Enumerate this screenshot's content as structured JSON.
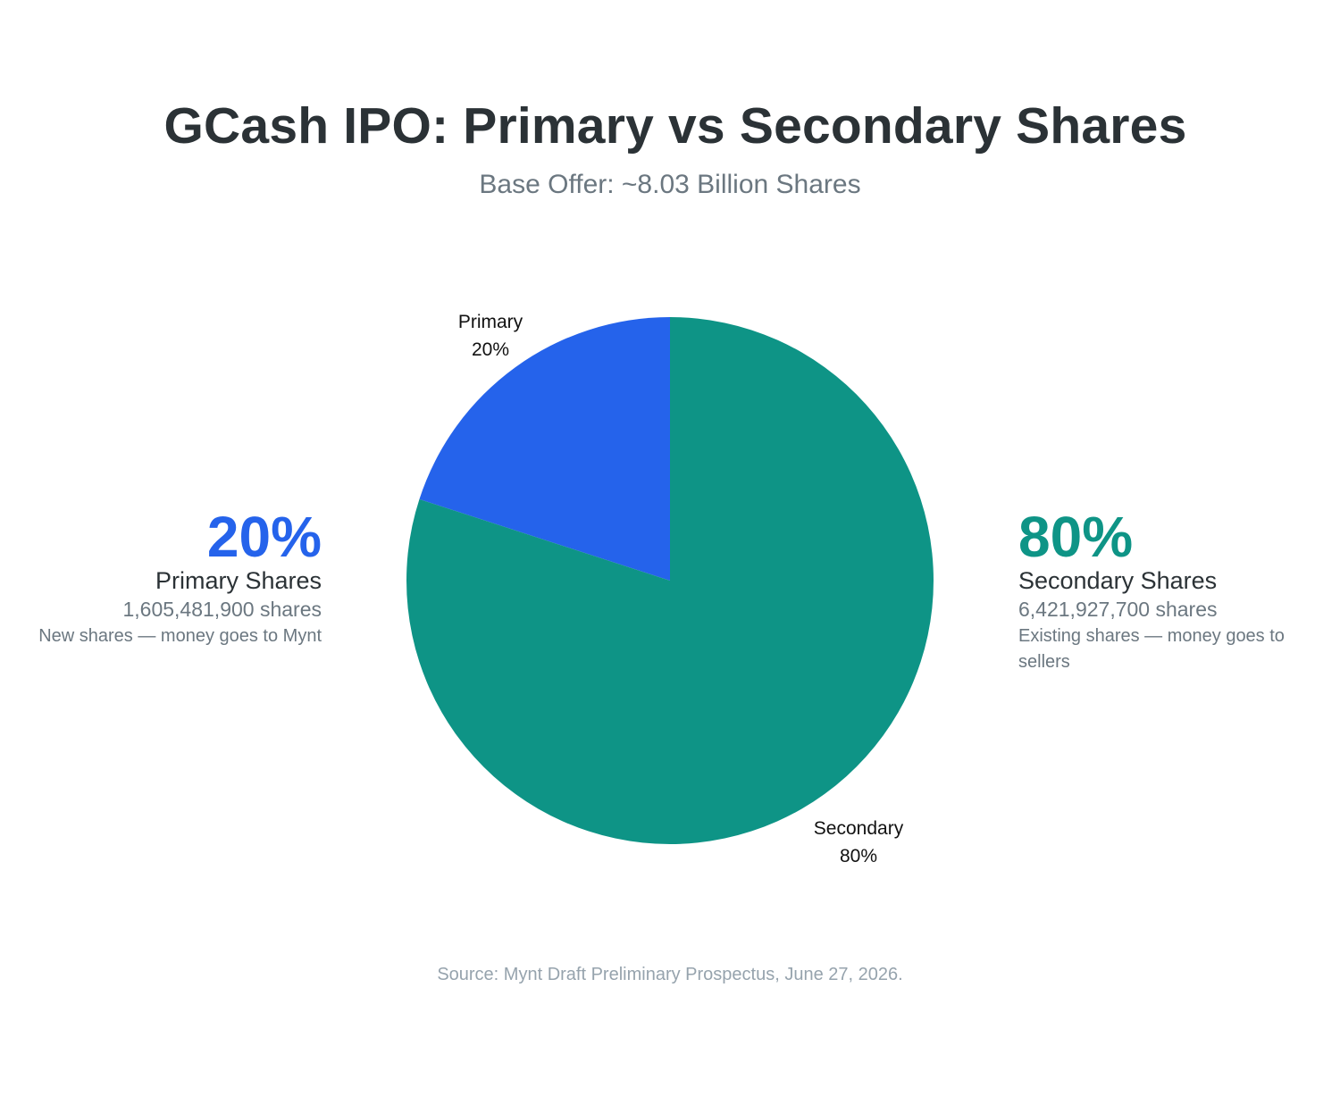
{
  "title": "GCash IPO: Primary vs Secondary Shares",
  "subtitle": "Base Offer: ~8.03 Billion Shares",
  "source": "Source: Mynt Draft Preliminary Prospectus, June 27, 2026.",
  "chart_data": {
    "type": "pie",
    "slices": [
      {
        "label": "Primary",
        "pct_label": "20%",
        "value": 20,
        "color": "#2563eb"
      },
      {
        "label": "Secondary",
        "pct_label": "80%",
        "value": 80,
        "color": "#0e9486"
      }
    ]
  },
  "callouts": {
    "primary": {
      "pct": "20%",
      "name": "Primary Shares",
      "count": "1,605,481,900 shares",
      "desc": "New shares — money goes to Mynt",
      "color": "#2563eb"
    },
    "secondary": {
      "pct": "80%",
      "name": "Secondary Shares",
      "count": "6,421,927,700 shares",
      "desc": "Existing shares — money goes to sellers",
      "color": "#0e9486"
    }
  }
}
